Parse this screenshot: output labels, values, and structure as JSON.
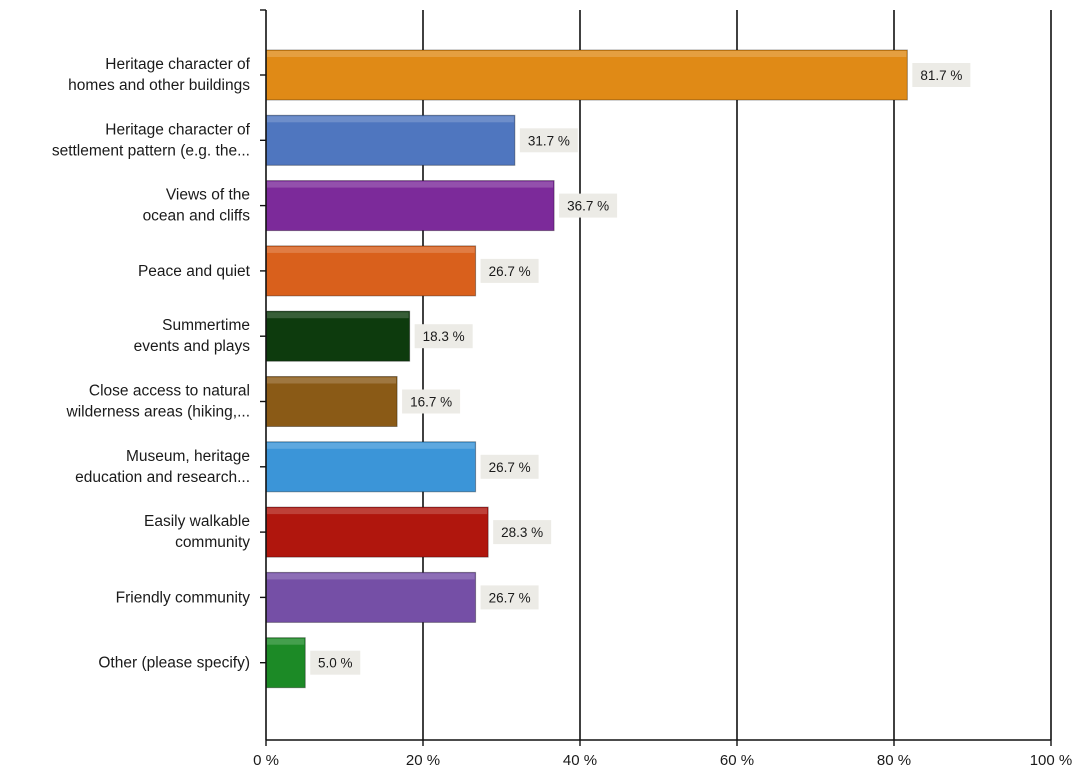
{
  "chart_data": {
    "type": "bar",
    "orientation": "horizontal",
    "categories": [
      [
        "Heritage character of",
        "homes and other buildings"
      ],
      [
        "Heritage character of",
        "settlement pattern (e.g. the..."
      ],
      [
        "Views of the",
        "ocean and cliffs"
      ],
      [
        "Peace and quiet"
      ],
      [
        "Summertime",
        "events and plays"
      ],
      [
        "Close access to natural",
        "wilderness areas (hiking,..."
      ],
      [
        "Museum, heritage",
        "education and research..."
      ],
      [
        "Easily walkable",
        "community"
      ],
      [
        "Friendly community"
      ],
      [
        "Other (please specify)"
      ]
    ],
    "values": [
      81.7,
      31.7,
      36.7,
      26.7,
      18.3,
      16.7,
      26.7,
      28.3,
      26.7,
      5.0
    ],
    "value_labels": [
      "81.7 %",
      "31.7 %",
      "36.7 %",
      "26.7 %",
      "18.3 %",
      "16.7 %",
      "26.7 %",
      "28.3 %",
      "26.7 %",
      "5.0 %"
    ],
    "bar_colors": [
      "#e08a12",
      "#4f76bf",
      "#7b2a9a",
      "#d9601c",
      "#0d3a10",
      "#8a5a14",
      "#3a95d8",
      "#b0120e",
      "#7450a6",
      "#1f8a28"
    ],
    "xlim": [
      0,
      100
    ],
    "xticks": [
      0,
      20,
      40,
      60,
      80,
      100
    ],
    "xtick_labels": [
      "0 %",
      "20 %",
      "40 %",
      "60 %",
      "80 %",
      "100 %"
    ],
    "grid": "vertical",
    "legend": "none",
    "title": "",
    "xlabel": "",
    "ylabel": ""
  }
}
